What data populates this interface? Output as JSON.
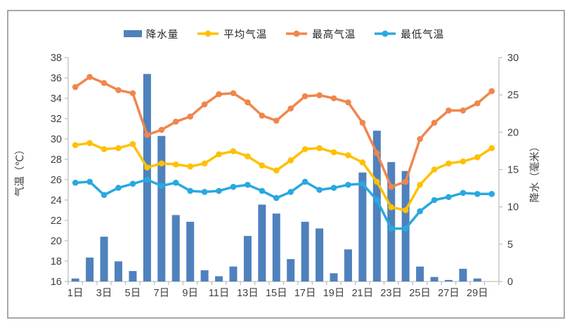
{
  "legend": {
    "items": [
      {
        "label": "降水量",
        "type": "bar",
        "color": "#4F81BD"
      },
      {
        "label": "平均气温",
        "type": "line",
        "color": "#FFC000"
      },
      {
        "label": "最高气温",
        "type": "line",
        "color": "#F0864D"
      },
      {
        "label": "最低气温",
        "type": "line",
        "color": "#29A8E0"
      }
    ]
  },
  "chart_data": {
    "type": "combo",
    "categories": [
      "1日",
      "2日",
      "3日",
      "4日",
      "5日",
      "6日",
      "7日",
      "8日",
      "9日",
      "10日",
      "11日",
      "12日",
      "13日",
      "14日",
      "15日",
      "16日",
      "17日",
      "18日",
      "19日",
      "20日",
      "21日",
      "22日",
      "23日",
      "24日",
      "25日",
      "26日",
      "27日",
      "28日",
      "29日",
      "30日"
    ],
    "xtick_labels_shown": [
      "1日",
      "3日",
      "5日",
      "7日",
      "9日",
      "11日",
      "13日",
      "15日",
      "17日",
      "19日",
      "21日",
      "23日",
      "25日",
      "27日",
      "29日"
    ],
    "series": [
      {
        "name": "降水量",
        "type": "bar",
        "axis": "right",
        "color": "#4F81BD",
        "values": [
          0.4,
          3.2,
          6.0,
          2.7,
          1.4,
          27.8,
          19.5,
          8.9,
          8.0,
          1.5,
          0.7,
          2.0,
          6.1,
          10.3,
          9.1,
          3.0,
          8.0,
          7.1,
          1.1,
          4.3,
          14.6,
          20.2,
          16.0,
          14.8,
          2.0,
          0.6,
          0.2,
          1.7,
          0.4,
          0
        ]
      },
      {
        "name": "平均气温",
        "type": "line",
        "axis": "left",
        "color": "#FFC000",
        "values": [
          29.4,
          29.6,
          29.0,
          29.1,
          29.5,
          27.2,
          27.6,
          27.5,
          27.3,
          27.6,
          28.5,
          28.8,
          28.3,
          27.4,
          26.9,
          27.9,
          29.0,
          29.1,
          28.7,
          28.4,
          27.7,
          25.8,
          23.3,
          23.0,
          25.5,
          27.0,
          27.6,
          27.8,
          28.2,
          29.1
        ]
      },
      {
        "name": "最高气温",
        "type": "line",
        "axis": "left",
        "color": "#F0864D",
        "values": [
          35.1,
          36.1,
          35.5,
          34.8,
          34.5,
          30.4,
          30.9,
          31.7,
          32.2,
          33.4,
          34.4,
          34.5,
          33.6,
          32.3,
          31.8,
          33.0,
          34.2,
          34.3,
          34.0,
          33.6,
          31.6,
          28.6,
          25.3,
          25.8,
          30.0,
          31.6,
          32.8,
          32.8,
          33.5,
          34.7
        ]
      },
      {
        "name": "最低气温",
        "type": "line",
        "axis": "left",
        "color": "#29A8E0",
        "values": [
          25.7,
          25.8,
          24.5,
          25.2,
          25.6,
          26.0,
          25.4,
          25.7,
          24.9,
          24.8,
          24.9,
          25.3,
          25.5,
          24.9,
          24.2,
          24.8,
          25.8,
          25.0,
          25.2,
          25.5,
          25.6,
          24.0,
          21.2,
          21.2,
          22.9,
          24.0,
          24.3,
          24.7,
          24.6,
          24.6
        ]
      }
    ],
    "left_axis": {
      "title": "气温（℃）",
      "min": 16,
      "max": 38,
      "step": 2
    },
    "right_axis": {
      "title": "降水（毫米）",
      "min": 0,
      "max": 30,
      "step": 5
    },
    "grid": false,
    "legend_position": "top",
    "axis_color": "#BFBFBF",
    "tick_label_color": "#3F3F3F"
  }
}
